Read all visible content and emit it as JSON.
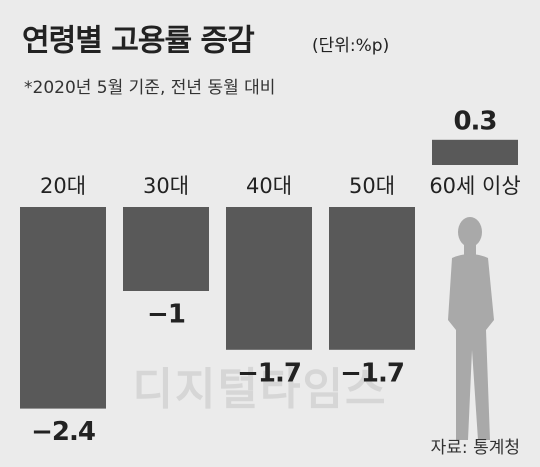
{
  "chart_data": {
    "type": "bar",
    "title": "연령별 고용률 증감",
    "subtitle": "(단위:%p)",
    "note": "*2020년 5월 기준, 전년 동월 대비",
    "categories": [
      "20대",
      "30대",
      "40대",
      "50대",
      "60세 이상"
    ],
    "values": [
      -2.4,
      -1,
      -1.7,
      -1.7,
      0.3
    ],
    "value_labels": [
      "−2.4",
      "−1",
      "−1.7",
      "−1.7",
      "0.3"
    ],
    "color": "#595959",
    "source": "자료: 통계청",
    "watermark": "디지털타임스"
  }
}
